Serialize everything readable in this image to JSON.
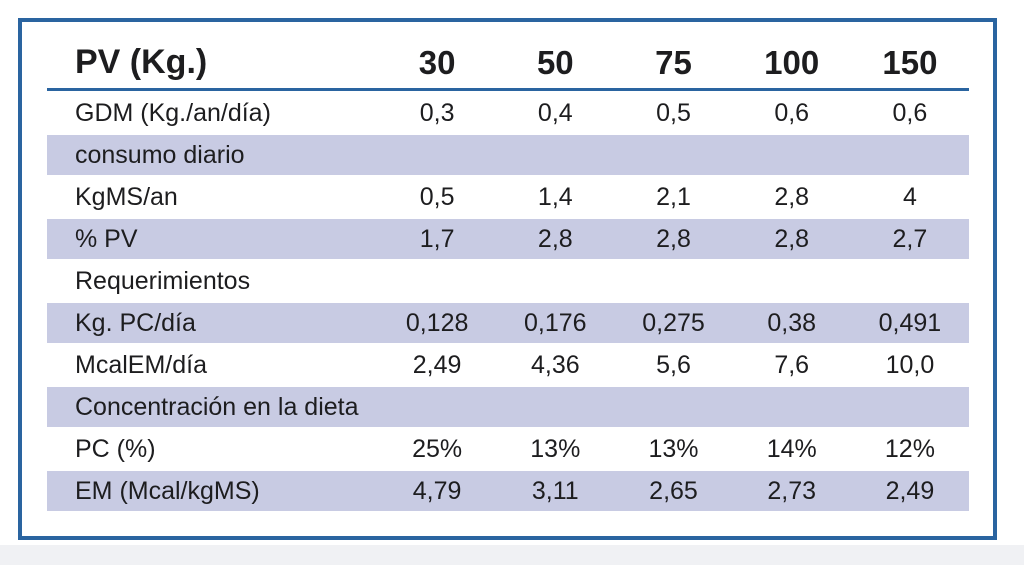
{
  "chart_data": {
    "type": "table",
    "title": "",
    "header_label": "PV (Kg.)",
    "columns": [
      "30",
      "50",
      "75",
      "100",
      "150"
    ],
    "rows": [
      {
        "type": "data",
        "shaded": false,
        "label": "GDM (Kg./an/día)",
        "values": [
          "0,3",
          "0,4",
          "0,5",
          "0,6",
          "0,6"
        ]
      },
      {
        "type": "section",
        "shaded": true,
        "label": "consumo diario",
        "values": []
      },
      {
        "type": "data",
        "shaded": false,
        "label": "KgMS/an",
        "values": [
          "0,5",
          "1,4",
          "2,1",
          "2,8",
          "4"
        ]
      },
      {
        "type": "data",
        "shaded": true,
        "label": "% PV",
        "values": [
          "1,7",
          "2,8",
          "2,8",
          "2,8",
          "2,7"
        ]
      },
      {
        "type": "section",
        "shaded": false,
        "label": "Requerimientos",
        "values": []
      },
      {
        "type": "data",
        "shaded": true,
        "label": "Kg. PC/día",
        "values": [
          "0,128",
          "0,176",
          "0,275",
          "0,38",
          "0,491"
        ]
      },
      {
        "type": "data",
        "shaded": false,
        "label": "McalEM/día",
        "values": [
          "2,49",
          "4,36",
          "5,6",
          "7,6",
          "10,0"
        ]
      },
      {
        "type": "section",
        "shaded": true,
        "label": "Concentración en la dieta",
        "values": []
      },
      {
        "type": "data",
        "shaded": false,
        "label": "PC (%)",
        "values": [
          "25%",
          "13%",
          "13%",
          "14%",
          "12%"
        ]
      },
      {
        "type": "data",
        "shaded": true,
        "label": "EM (Mcal/kgMS)",
        "values": [
          "4,79",
          "3,11",
          "2,65",
          "2,73",
          "2,49"
        ]
      }
    ]
  },
  "colors": {
    "frame_border": "#2a64a0",
    "header_rule": "#2a64a0",
    "row_shade": "#c8cbe3",
    "text": "#1d1d1f",
    "bottom_band": "#f0f1f4"
  }
}
